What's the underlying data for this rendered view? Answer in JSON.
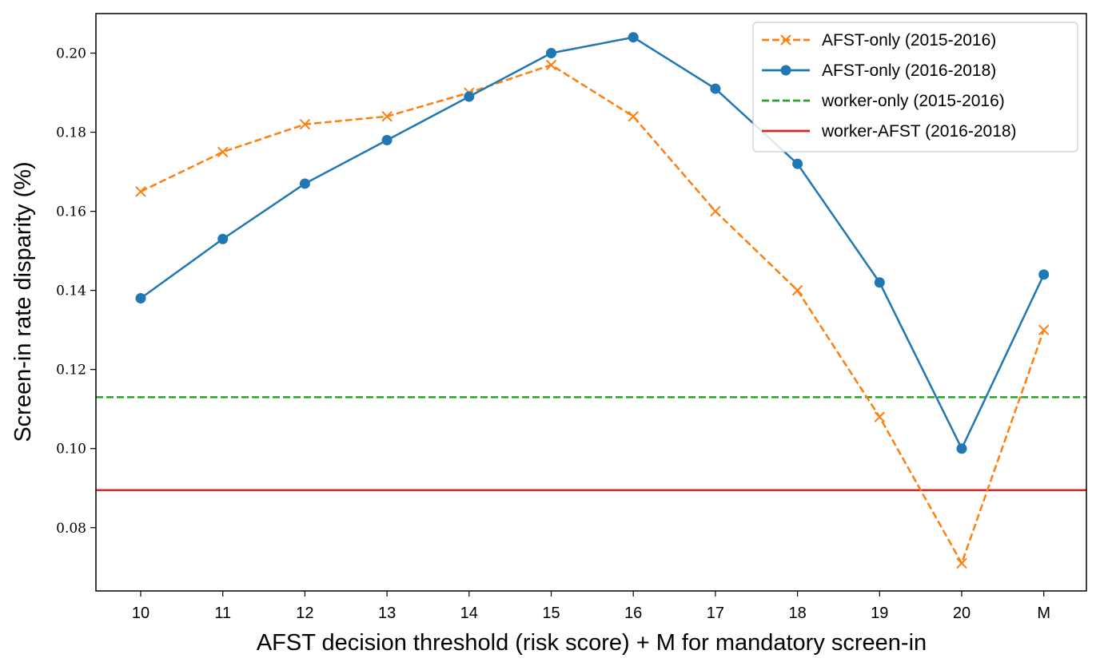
{
  "chart_data": {
    "type": "line",
    "title": "",
    "xlabel": "AFST decision threshold (risk score) + M for mandatory screen-in",
    "ylabel": "Screen-in rate disparity (%)",
    "categories": [
      "10",
      "11",
      "12",
      "13",
      "14",
      "15",
      "16",
      "17",
      "18",
      "19",
      "20",
      "M"
    ],
    "ylim": [
      0.064,
      0.21
    ],
    "yticks": [
      0.08,
      0.1,
      0.12,
      0.14,
      0.16,
      0.18,
      0.2
    ],
    "ytick_labels": [
      "0.08",
      "0.10",
      "0.12",
      "0.14",
      "0.16",
      "0.18",
      "0.20"
    ],
    "grid": false,
    "legend_position": "top-right",
    "series": [
      {
        "name": "AFST-only (2015-2016)",
        "style": "dashed",
        "marker": "x",
        "color": "#ff7f0e",
        "values": [
          0.165,
          0.175,
          0.182,
          0.184,
          0.19,
          0.197,
          0.184,
          0.16,
          0.14,
          0.108,
          0.071,
          0.13
        ]
      },
      {
        "name": "AFST-only (2016-2018)",
        "style": "solid",
        "marker": "o",
        "color": "#1f77b4",
        "values": [
          0.138,
          0.153,
          0.167,
          0.178,
          0.189,
          0.2,
          0.204,
          0.191,
          0.172,
          0.142,
          0.1,
          0.144
        ]
      }
    ],
    "reference_lines": [
      {
        "name": "worker-only (2015-2016)",
        "style": "dashed",
        "color": "#2ca02c",
        "value": 0.113
      },
      {
        "name": "worker-AFST (2016-2018)",
        "style": "solid",
        "color": "#d62728",
        "value": 0.0895
      }
    ]
  }
}
